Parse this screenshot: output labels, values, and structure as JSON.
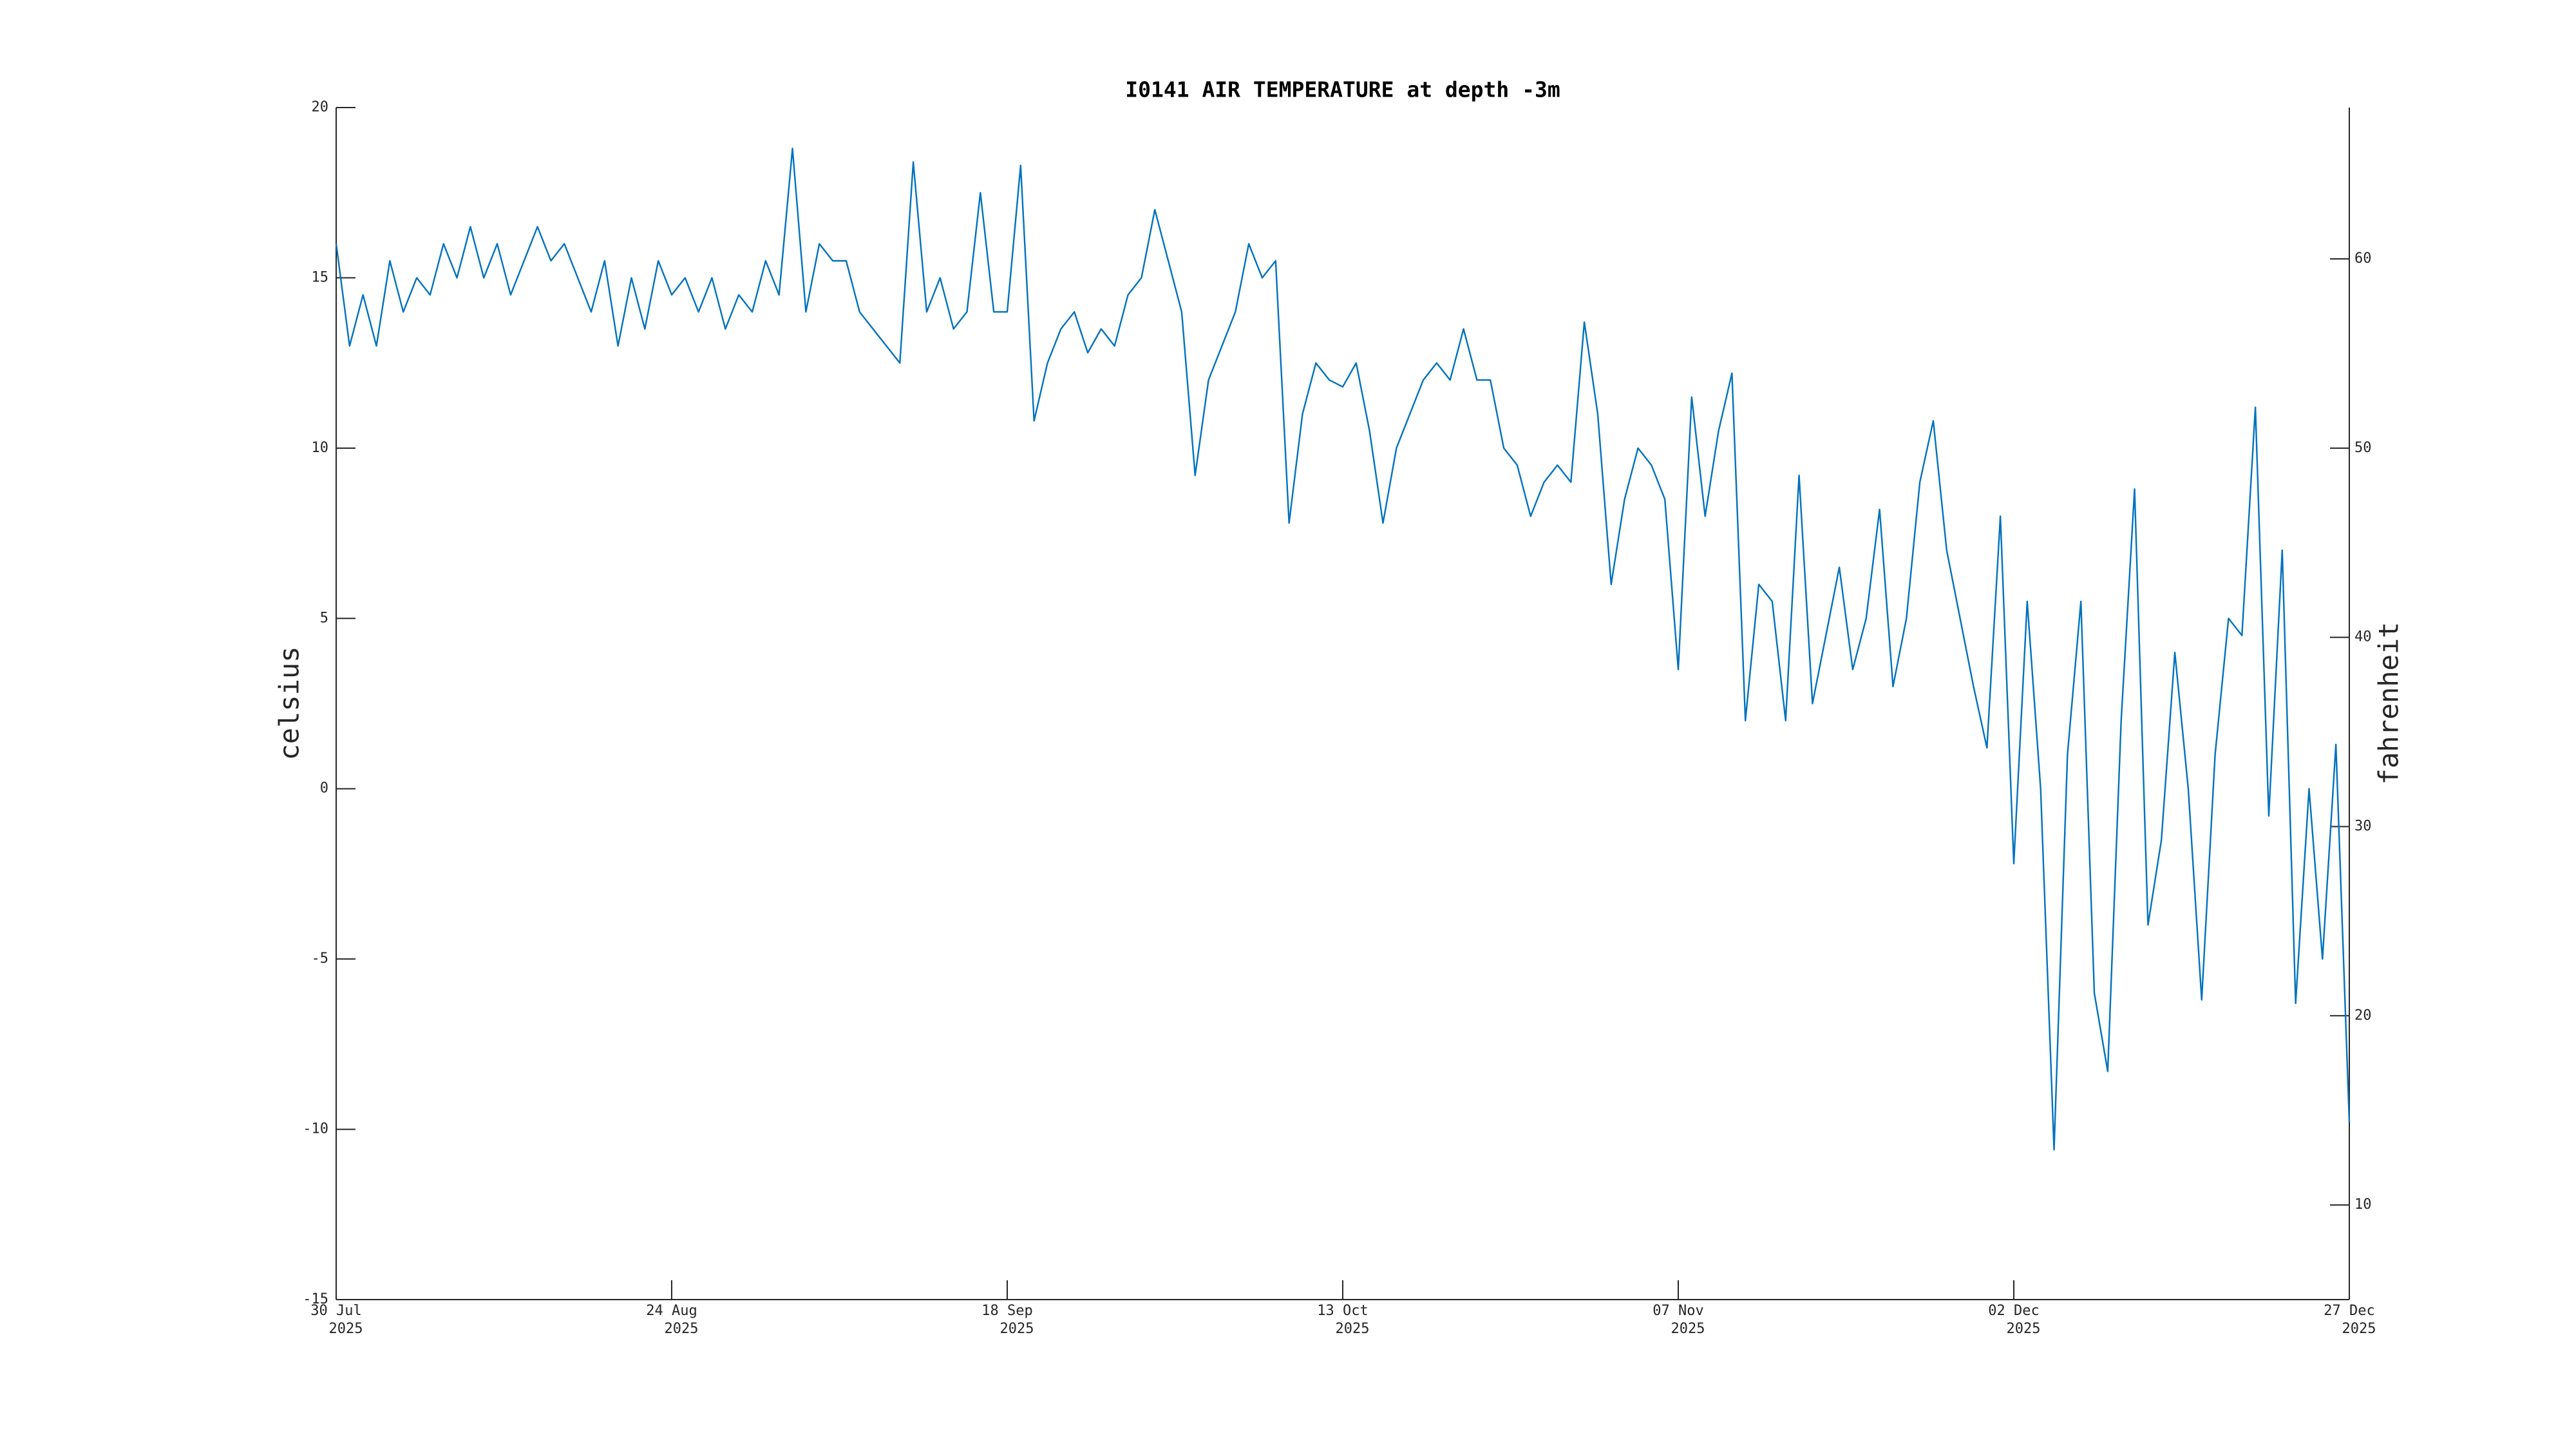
{
  "chart_data": {
    "type": "line",
    "title": "I0141 AIR TEMPERATURE at depth -3m",
    "y_label": "celsius",
    "y2_label": "fahrenheit",
    "xlim": [
      "2025-07-30",
      "2025-12-27"
    ],
    "xticks": [
      {
        "value": "2025-07-30",
        "label": [
          "30 Jul",
          "2025"
        ]
      },
      {
        "value": "2025-08-24",
        "label": [
          "24 Aug",
          "2025"
        ]
      },
      {
        "value": "2025-09-18",
        "label": [
          "18 Sep",
          "2025"
        ]
      },
      {
        "value": "2025-10-13",
        "label": [
          "13 Oct",
          "2025"
        ]
      },
      {
        "value": "2025-11-07",
        "label": [
          "07 Nov",
          "2025"
        ]
      },
      {
        "value": "2025-12-02",
        "label": [
          "02 Dec",
          "2025"
        ]
      },
      {
        "value": "2025-12-27",
        "label": [
          "27 Dec",
          "2025"
        ]
      }
    ],
    "ylim": [
      -15,
      20
    ],
    "yticks": [
      -15,
      -10,
      -5,
      0,
      5,
      10,
      15,
      20
    ],
    "y2lim": [
      5,
      68
    ],
    "y2ticks": [
      10,
      20,
      30,
      40,
      50,
      60
    ],
    "grid": false,
    "x": [
      "2025-07-30",
      "2025-07-31",
      "2025-08-01",
      "2025-08-02",
      "2025-08-03",
      "2025-08-04",
      "2025-08-05",
      "2025-08-06",
      "2025-08-07",
      "2025-08-08",
      "2025-08-09",
      "2025-08-10",
      "2025-08-11",
      "2025-08-12",
      "2025-08-13",
      "2025-08-14",
      "2025-08-15",
      "2025-08-16",
      "2025-08-17",
      "2025-08-18",
      "2025-08-19",
      "2025-08-20",
      "2025-08-21",
      "2025-08-22",
      "2025-08-23",
      "2025-08-24",
      "2025-08-25",
      "2025-08-26",
      "2025-08-27",
      "2025-08-28",
      "2025-08-29",
      "2025-08-30",
      "2025-08-31",
      "2025-09-01",
      "2025-09-02",
      "2025-09-03",
      "2025-09-04",
      "2025-09-05",
      "2025-09-06",
      "2025-09-07",
      "2025-09-08",
      "2025-09-09",
      "2025-09-10",
      "2025-09-11",
      "2025-09-12",
      "2025-09-13",
      "2025-09-14",
      "2025-09-15",
      "2025-09-16",
      "2025-09-17",
      "2025-09-18",
      "2025-09-19",
      "2025-09-20",
      "2025-09-21",
      "2025-09-22",
      "2025-09-23",
      "2025-09-24",
      "2025-09-25",
      "2025-09-26",
      "2025-09-27",
      "2025-09-28",
      "2025-09-29",
      "2025-09-30",
      "2025-10-01",
      "2025-10-02",
      "2025-10-03",
      "2025-10-04",
      "2025-10-05",
      "2025-10-06",
      "2025-10-07",
      "2025-10-08",
      "2025-10-09",
      "2025-10-10",
      "2025-10-11",
      "2025-10-12",
      "2025-10-13",
      "2025-10-14",
      "2025-10-15",
      "2025-10-16",
      "2025-10-17",
      "2025-10-18",
      "2025-10-19",
      "2025-10-20",
      "2025-10-21",
      "2025-10-22",
      "2025-10-23",
      "2025-10-24",
      "2025-10-25",
      "2025-10-26",
      "2025-10-27",
      "2025-10-28",
      "2025-10-29",
      "2025-10-30",
      "2025-10-31",
      "2025-11-01",
      "2025-11-02",
      "2025-11-03",
      "2025-11-04",
      "2025-11-05",
      "2025-11-06",
      "2025-11-07",
      "2025-11-08",
      "2025-11-09",
      "2025-11-10",
      "2025-11-11",
      "2025-11-12",
      "2025-11-13",
      "2025-11-14",
      "2025-11-15",
      "2025-11-16",
      "2025-11-17",
      "2025-11-18",
      "2025-11-19",
      "2025-11-20",
      "2025-11-21",
      "2025-11-22",
      "2025-11-23",
      "2025-11-24",
      "2025-11-25",
      "2025-11-26",
      "2025-11-27",
      "2025-11-28",
      "2025-11-29",
      "2025-11-30",
      "2025-12-01",
      "2025-12-02",
      "2025-12-03",
      "2025-12-04",
      "2025-12-05",
      "2025-12-06",
      "2025-12-07",
      "2025-12-08",
      "2025-12-09",
      "2025-12-10",
      "2025-12-11",
      "2025-12-12",
      "2025-12-13",
      "2025-12-14",
      "2025-12-15",
      "2025-12-16",
      "2025-12-17",
      "2025-12-18",
      "2025-12-19",
      "2025-12-20",
      "2025-12-21",
      "2025-12-22",
      "2025-12-23",
      "2025-12-24",
      "2025-12-25",
      "2025-12-26",
      "2025-12-27"
    ],
    "series": [
      {
        "color": "#0072bd",
        "values": [
          16,
          13,
          14.5,
          13,
          15.5,
          14,
          15,
          14.5,
          16,
          15,
          16.5,
          15,
          16,
          14.5,
          15.5,
          16.5,
          15.5,
          16,
          15,
          14,
          15.5,
          13,
          15,
          13.5,
          15.5,
          14.5,
          15,
          14,
          15,
          13.5,
          14.5,
          14,
          15.5,
          14.5,
          18.8,
          14,
          16,
          15.5,
          15.5,
          14,
          13.5,
          13,
          12.5,
          18.4,
          14,
          15,
          13.5,
          14,
          17.5,
          14,
          14,
          18.3,
          10.8,
          12.5,
          13.5,
          14,
          12.8,
          13.5,
          13,
          14.5,
          15,
          17,
          15.5,
          14,
          9.2,
          12,
          13,
          14,
          16,
          15,
          15.5,
          7.8,
          11,
          12.5,
          12,
          11.8,
          12.5,
          10.5,
          7.8,
          10,
          11,
          12,
          12.5,
          12,
          13.5,
          12,
          12,
          10,
          9.5,
          8,
          9,
          9.5,
          9,
          13.7,
          11,
          6,
          8.5,
          10,
          9.5,
          8.5,
          3.5,
          11.5,
          8,
          10.5,
          12.2,
          2,
          6,
          5.5,
          2,
          9.2,
          2.5,
          4.5,
          6.5,
          3.5,
          5,
          8.2,
          3,
          5,
          9,
          10.8,
          7,
          5,
          3,
          1.2,
          8,
          -2.2,
          5.5,
          0,
          -10.6,
          1,
          5.5,
          -6,
          -8.3,
          2,
          8.8,
          -4,
          -1.5,
          4,
          0,
          -6.2,
          1,
          5,
          4.5,
          11.2,
          -0.8,
          7,
          -6.3,
          0,
          -5,
          1.3,
          -9.8
        ]
      }
    ]
  }
}
